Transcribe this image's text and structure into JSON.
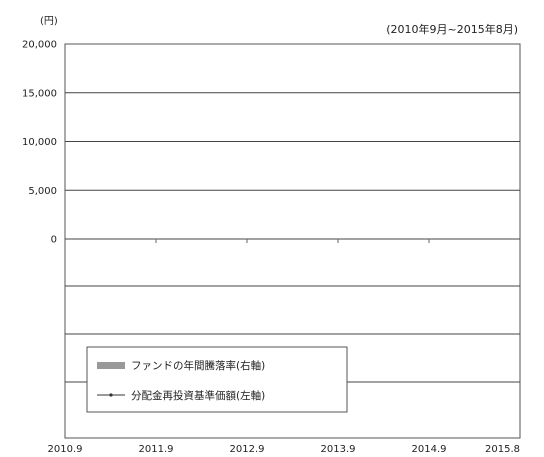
{
  "chart_data": {
    "type": "line",
    "unit_label": "(円)",
    "period_label": "(2010年9月~2015年8月)",
    "y_left": {
      "ticks": [
        0,
        5000,
        10000,
        15000,
        20000
      ],
      "tick_labels": [
        "0",
        "5,000",
        "10,000",
        "15,000",
        "20,000"
      ],
      "range": [
        0,
        20000
      ]
    },
    "x": {
      "tick_labels": [
        "2010.9",
        "2011.9",
        "2012.9",
        "2013.9",
        "2014.9",
        "2015.8"
      ]
    },
    "series": [
      {
        "name": "ファンドの年間騰落率(右軸)",
        "kind": "bar",
        "color": "#999999",
        "values": []
      },
      {
        "name": "分配金再投資基準価額(左軸)",
        "kind": "line",
        "color": "#333333",
        "values": [
          0,
          0,
          0,
          0
        ]
      }
    ],
    "grid": true,
    "legend_position": "bottom-left"
  }
}
